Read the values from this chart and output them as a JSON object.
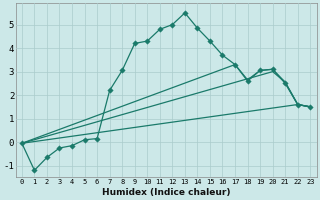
{
  "xlabel": "Humidex (Indice chaleur)",
  "bg_color": "#cce8e8",
  "grid_color": "#aacccc",
  "line_color": "#1a7a6a",
  "xlim": [
    -0.5,
    23.5
  ],
  "ylim": [
    -1.5,
    5.9
  ],
  "xticks": [
    0,
    1,
    2,
    3,
    4,
    5,
    6,
    7,
    8,
    9,
    10,
    11,
    12,
    13,
    14,
    15,
    16,
    17,
    18,
    19,
    20,
    21,
    22,
    23
  ],
  "yticks": [
    -1,
    0,
    1,
    2,
    3,
    4,
    5
  ],
  "line1_x": [
    0,
    1,
    2,
    3,
    4,
    5,
    6,
    7,
    8,
    9,
    10,
    11,
    12,
    13,
    14,
    15,
    16,
    17,
    18,
    19,
    20,
    21,
    22,
    23
  ],
  "line1_y": [
    -0.05,
    -1.2,
    -0.65,
    -0.25,
    -0.15,
    0.1,
    0.15,
    2.2,
    3.05,
    4.2,
    4.3,
    4.8,
    5.0,
    5.5,
    4.85,
    4.3,
    3.7,
    3.3,
    2.6,
    3.05,
    3.1,
    2.5,
    1.6,
    1.5
  ],
  "line2_x": [
    0,
    22,
    23
  ],
  "line2_y": [
    -0.05,
    1.6,
    1.5
  ],
  "line3_x": [
    0,
    20,
    21,
    22,
    23
  ],
  "line3_y": [
    -0.05,
    3.0,
    2.55,
    1.6,
    1.5
  ],
  "line4_x": [
    0,
    17,
    18,
    19,
    20,
    21,
    22,
    23
  ],
  "line4_y": [
    -0.05,
    3.3,
    2.65,
    3.05,
    3.1,
    2.55,
    1.6,
    1.5
  ]
}
